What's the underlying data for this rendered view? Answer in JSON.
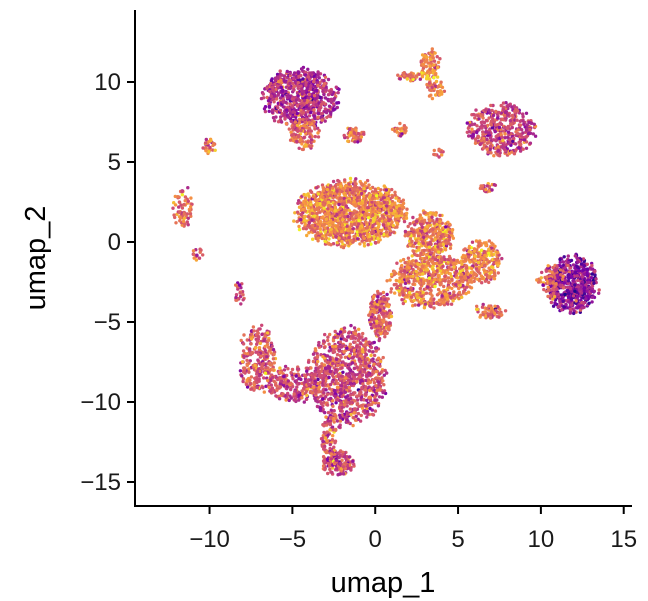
{
  "chart_data": {
    "type": "scatter",
    "xlabel": "umap_1",
    "ylabel": "umap_2",
    "xlim": [
      -14.5,
      15.5
    ],
    "ylim": [
      -16.5,
      14.5
    ],
    "xticks": [
      -10,
      -5,
      0,
      5,
      10,
      15
    ],
    "xtick_labels": [
      "−10",
      "−5",
      "0",
      "5",
      "10",
      "15"
    ],
    "yticks": [
      -15,
      -10,
      -5,
      0,
      5,
      10
    ],
    "ytick_labels": [
      "−15",
      "−10",
      "−5",
      "0",
      "5",
      "10"
    ],
    "grid": false,
    "legend": "none",
    "colormap": [
      "#0d0887",
      "#7e03a8",
      "#cc4778",
      "#f89540",
      "#f0f921"
    ],
    "clusters": [
      {
        "cx": -4.5,
        "cy": 9.0,
        "rx": 2.2,
        "ry": 1.8,
        "level": 0.42,
        "n": 700
      },
      {
        "cx": -4.3,
        "cy": 6.8,
        "rx": 0.9,
        "ry": 1.0,
        "level": 0.6,
        "n": 120
      },
      {
        "cx": -1.3,
        "cy": 6.7,
        "rx": 0.6,
        "ry": 0.5,
        "level": 0.62,
        "n": 50
      },
      {
        "cx": 3.3,
        "cy": 11.0,
        "rx": 0.6,
        "ry": 1.1,
        "level": 0.68,
        "n": 90
      },
      {
        "cx": 2.0,
        "cy": 10.3,
        "rx": 0.8,
        "ry": 0.3,
        "level": 0.66,
        "n": 35
      },
      {
        "cx": 3.6,
        "cy": 9.5,
        "rx": 0.6,
        "ry": 0.6,
        "level": 0.64,
        "n": 40
      },
      {
        "cx": 1.5,
        "cy": 7.0,
        "rx": 0.5,
        "ry": 0.4,
        "level": 0.65,
        "n": 30
      },
      {
        "cx": 3.8,
        "cy": 5.6,
        "rx": 0.3,
        "ry": 0.3,
        "level": 0.62,
        "n": 12
      },
      {
        "cx": 7.6,
        "cy": 7.0,
        "rx": 2.0,
        "ry": 1.7,
        "level": 0.5,
        "n": 420
      },
      {
        "cx": 6.8,
        "cy": 3.4,
        "rx": 0.5,
        "ry": 0.3,
        "level": 0.6,
        "n": 20
      },
      {
        "cx": -10.0,
        "cy": 6.0,
        "rx": 0.4,
        "ry": 0.5,
        "level": 0.6,
        "n": 28
      },
      {
        "cx": -11.6,
        "cy": 2.2,
        "rx": 0.6,
        "ry": 1.3,
        "level": 0.62,
        "n": 70
      },
      {
        "cx": -10.7,
        "cy": -0.8,
        "rx": 0.35,
        "ry": 0.4,
        "level": 0.58,
        "n": 14
      },
      {
        "cx": -8.2,
        "cy": -3.2,
        "rx": 0.3,
        "ry": 0.8,
        "level": 0.5,
        "n": 24
      },
      {
        "cx": -1.5,
        "cy": 1.8,
        "rx": 3.3,
        "ry": 2.0,
        "level": 0.68,
        "n": 1400
      },
      {
        "cx": 3.3,
        "cy": 0.5,
        "rx": 1.5,
        "ry": 1.4,
        "level": 0.66,
        "n": 350
      },
      {
        "cx": 3.4,
        "cy": -2.4,
        "rx": 2.5,
        "ry": 1.7,
        "level": 0.66,
        "n": 650
      },
      {
        "cx": 6.4,
        "cy": -1.2,
        "rx": 1.2,
        "ry": 1.3,
        "level": 0.66,
        "n": 220
      },
      {
        "cx": 0.3,
        "cy": -4.6,
        "rx": 0.7,
        "ry": 1.6,
        "level": 0.6,
        "n": 200
      },
      {
        "cx": 7.0,
        "cy": -4.3,
        "rx": 1.0,
        "ry": 0.5,
        "level": 0.6,
        "n": 60
      },
      {
        "cx": -7.1,
        "cy": -7.4,
        "rx": 1.1,
        "ry": 2.2,
        "level": 0.56,
        "n": 260
      },
      {
        "cx": -4.9,
        "cy": -8.9,
        "rx": 1.6,
        "ry": 1.1,
        "level": 0.52,
        "n": 220
      },
      {
        "cx": -1.7,
        "cy": -8.4,
        "rx": 2.3,
        "ry": 3.0,
        "level": 0.52,
        "n": 900
      },
      {
        "cx": -2.8,
        "cy": -12.5,
        "rx": 0.45,
        "ry": 1.5,
        "level": 0.55,
        "n": 80
      },
      {
        "cx": -2.3,
        "cy": -13.8,
        "rx": 1.0,
        "ry": 0.8,
        "level": 0.54,
        "n": 150
      },
      {
        "cx": 11.9,
        "cy": -2.7,
        "rx": 1.5,
        "ry": 1.8,
        "level": 0.3,
        "n": 560
      },
      {
        "cx": 10.6,
        "cy": -2.5,
        "rx": 0.8,
        "ry": 1.1,
        "level": 0.55,
        "n": 80
      }
    ]
  }
}
